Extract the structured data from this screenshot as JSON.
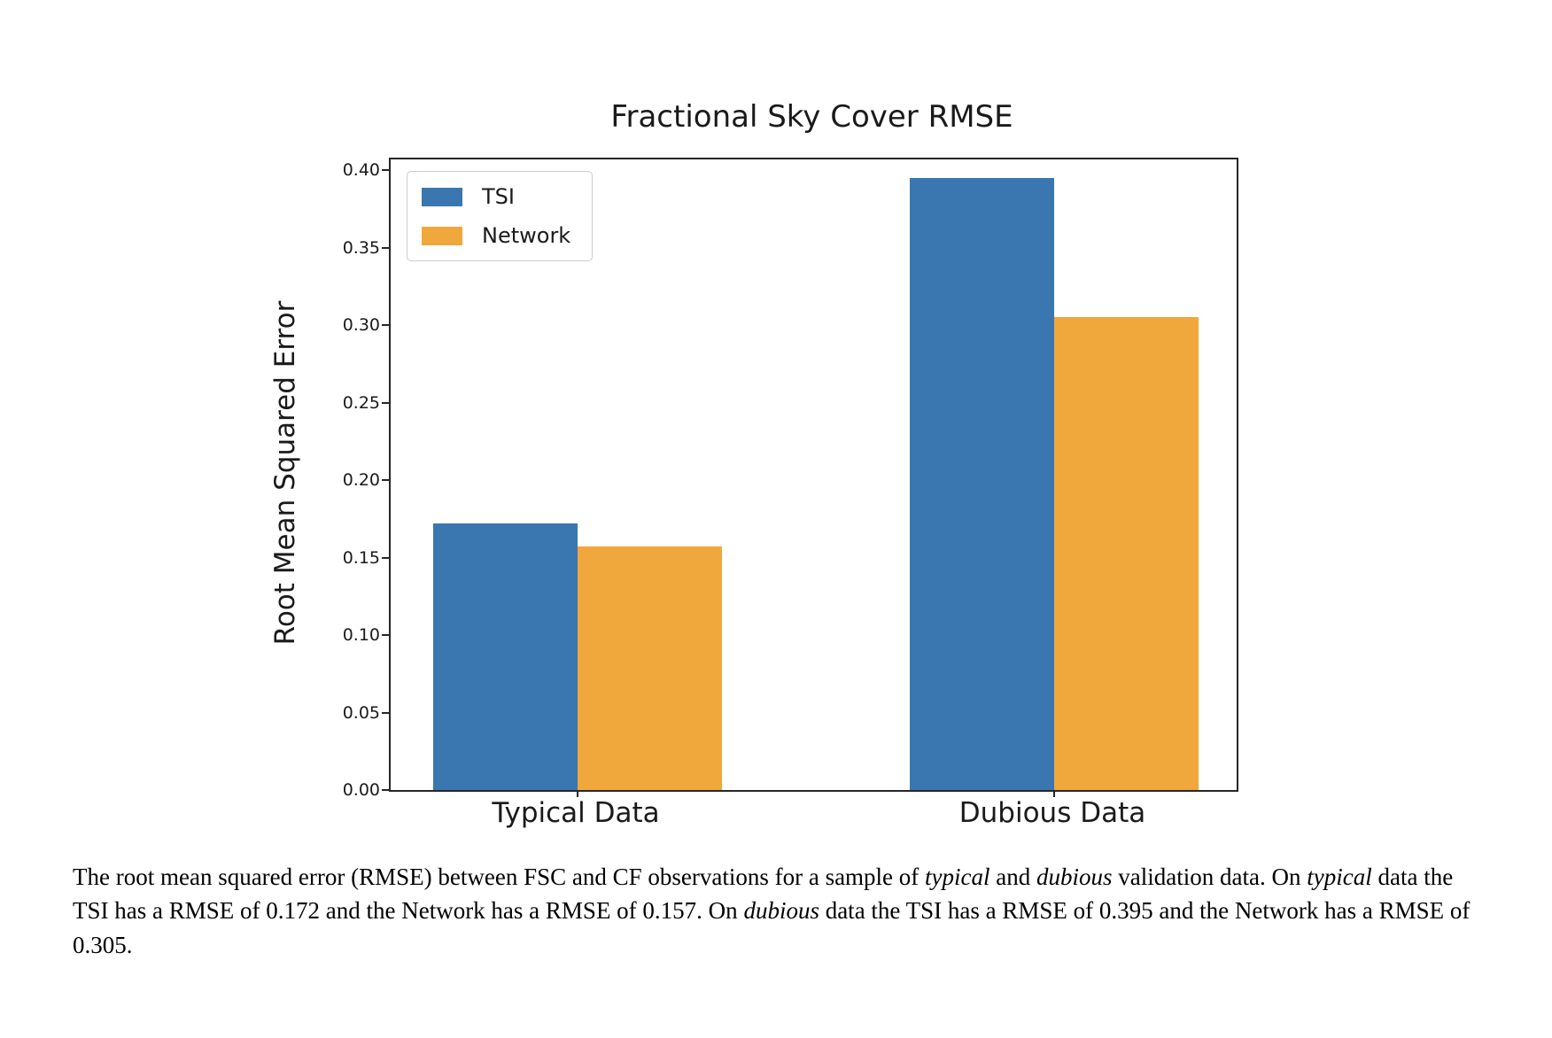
{
  "chart_data": {
    "type": "bar",
    "title": "Fractional Sky Cover RMSE",
    "xlabel": "",
    "ylabel": "Root Mean Squared Error",
    "categories": [
      "Typical Data",
      "Dubious Data"
    ],
    "series": [
      {
        "name": "TSI",
        "color": "#3A76AF",
        "values": [
          0.172,
          0.395
        ]
      },
      {
        "name": "Network",
        "color": "#F0A73C",
        "values": [
          0.157,
          0.305
        ]
      }
    ],
    "ylim": [
      0,
      0.4069
    ],
    "ytick_labels": [
      "0.00",
      "0.05",
      "0.10",
      "0.15",
      "0.20",
      "0.25",
      "0.30",
      "0.35",
      "0.40"
    ],
    "legend_position": "upper left",
    "grid": false
  },
  "caption": {
    "segments": [
      {
        "text": "The root mean squared error (RMSE) between FSC and CF observations for a sample of ",
        "italic": false
      },
      {
        "text": "typical",
        "italic": true
      },
      {
        "text": " and ",
        "italic": false
      },
      {
        "text": "dubious",
        "italic": true
      },
      {
        "text": " validation data. On ",
        "italic": false
      },
      {
        "text": "typical",
        "italic": true
      },
      {
        "text": " data the TSI has a RMSE of 0.172 and the Network has a RMSE of 0.157. On ",
        "italic": false
      },
      {
        "text": "dubious",
        "italic": true
      },
      {
        "text": " data the TSI has a RMSE of 0.395 and the Network has a RMSE of 0.305.",
        "italic": false
      }
    ]
  }
}
